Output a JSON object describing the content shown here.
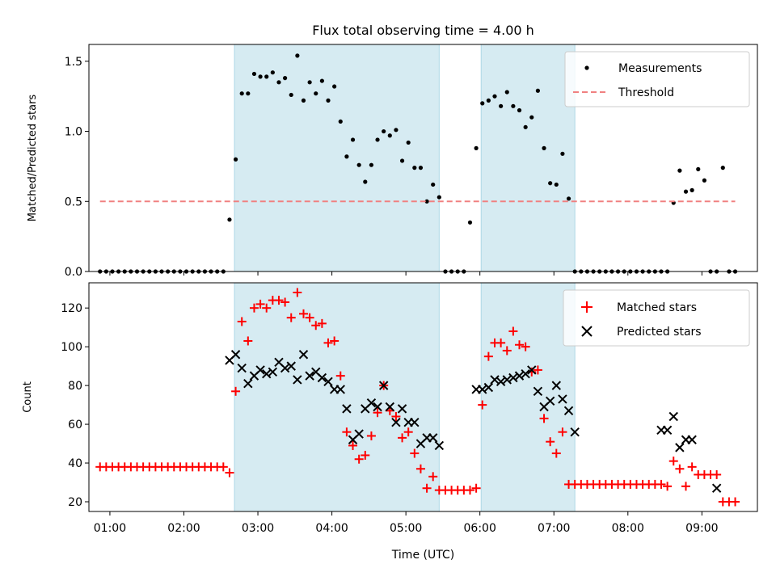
{
  "chart_data": [
    {
      "type": "scatter",
      "title": "Flux total observing time = 4.00 h",
      "xlabel": "",
      "ylabel": "Matched/Predicted stars",
      "xlim": [
        "00:43",
        "09:45"
      ],
      "ylim": [
        0.0,
        1.62
      ],
      "yticks": [
        0.0,
        0.5,
        1.0,
        1.5
      ],
      "ytick_labels": [
        "0.0",
        "0.5",
        "1.0",
        "1.5"
      ],
      "legend_position": "top-right",
      "shaded_intervals": [
        [
          "02:41",
          "05:27"
        ],
        [
          "06:01",
          "07:17"
        ]
      ],
      "series": [
        {
          "name": "Measurements",
          "kind": "dots",
          "color": "#000000",
          "x": [
            "00:52",
            "00:57",
            "01:02",
            "01:07",
            "01:12",
            "01:17",
            "01:22",
            "01:27",
            "01:32",
            "01:37",
            "01:42",
            "01:47",
            "01:52",
            "01:57",
            "02:02",
            "02:07",
            "02:12",
            "02:17",
            "02:22",
            "02:27",
            "02:32",
            "02:37",
            "02:42",
            "02:47",
            "02:52",
            "02:57",
            "03:02",
            "03:07",
            "03:12",
            "03:17",
            "03:22",
            "03:27",
            "03:32",
            "03:37",
            "03:42",
            "03:47",
            "03:52",
            "03:57",
            "04:02",
            "04:07",
            "04:12",
            "04:17",
            "04:22",
            "04:27",
            "04:32",
            "04:37",
            "04:42",
            "04:47",
            "04:52",
            "04:57",
            "05:02",
            "05:07",
            "05:12",
            "05:17",
            "05:22",
            "05:27",
            "05:32",
            "05:37",
            "05:42",
            "05:47",
            "05:52",
            "05:57",
            "06:02",
            "06:07",
            "06:12",
            "06:17",
            "06:22",
            "06:27",
            "06:32",
            "06:37",
            "06:42",
            "06:47",
            "06:52",
            "06:57",
            "07:02",
            "07:07",
            "07:12",
            "07:17",
            "07:22",
            "07:27",
            "07:32",
            "07:37",
            "07:42",
            "07:47",
            "07:52",
            "07:57",
            "08:02",
            "08:07",
            "08:12",
            "08:17",
            "08:22",
            "08:27",
            "08:32",
            "08:37",
            "08:42",
            "08:47",
            "08:52",
            "08:57",
            "09:02",
            "09:07",
            "09:12",
            "09:17",
            "09:22",
            "09:27"
          ],
          "y": [
            0,
            0,
            0,
            0,
            0,
            0,
            0,
            0,
            0,
            0,
            0,
            0,
            0,
            0,
            0,
            0,
            0,
            0,
            0,
            0,
            0,
            0.37,
            0.8,
            1.27,
            1.27,
            1.41,
            1.39,
            1.39,
            1.42,
            1.35,
            1.38,
            1.26,
            1.54,
            1.22,
            1.35,
            1.27,
            1.36,
            1.22,
            1.32,
            1.07,
            0.82,
            0.94,
            0.76,
            0.64,
            0.76,
            0.94,
            1.0,
            0.97,
            1.01,
            0.79,
            0.92,
            0.74,
            0.74,
            0.5,
            0.62,
            0.53,
            0,
            0,
            0,
            0,
            0.35,
            0.88,
            1.2,
            1.22,
            1.25,
            1.18,
            1.28,
            1.18,
            1.15,
            1.03,
            1.1,
            1.29,
            0.88,
            0.63,
            0.62,
            0.84,
            0.52,
            0,
            0,
            0,
            0,
            0,
            0,
            0,
            0,
            0,
            0,
            0,
            0,
            0,
            0,
            0,
            0,
            0.49,
            0.72,
            0.57,
            0.58,
            0.73,
            0.65,
            0,
            0,
            0.74,
            0,
            0
          ]
        },
        {
          "name": "Threshold",
          "kind": "dashed-line",
          "color": "#f08080",
          "x": [
            "00:52",
            "09:27"
          ],
          "y": [
            0.5,
            0.5
          ]
        }
      ]
    },
    {
      "type": "scatter",
      "title": "",
      "xlabel": "Time (UTC)",
      "ylabel": "Count",
      "xlim": [
        "00:43",
        "09:45"
      ],
      "ylim": [
        15,
        133
      ],
      "yticks": [
        20,
        40,
        60,
        80,
        100,
        120
      ],
      "ytick_labels": [
        "20",
        "40",
        "60",
        "80",
        "100",
        "120"
      ],
      "xticks": [
        "01:00",
        "02:00",
        "03:00",
        "04:00",
        "05:00",
        "06:00",
        "07:00",
        "08:00",
        "09:00"
      ],
      "xtick_labels": [
        "01:00",
        "02:00",
        "03:00",
        "04:00",
        "05:00",
        "06:00",
        "07:00",
        "08:00",
        "09:00"
      ],
      "legend_position": "top-right",
      "shaded_intervals": [
        [
          "02:41",
          "05:27"
        ],
        [
          "06:01",
          "07:17"
        ]
      ],
      "series": [
        {
          "name": "Matched stars",
          "marker": "plus",
          "color": "#ff0000",
          "x": [
            "00:52",
            "00:57",
            "01:02",
            "01:07",
            "01:12",
            "01:17",
            "01:22",
            "01:27",
            "01:32",
            "01:37",
            "01:42",
            "01:47",
            "01:52",
            "01:57",
            "02:02",
            "02:07",
            "02:12",
            "02:17",
            "02:22",
            "02:27",
            "02:32",
            "02:37",
            "02:42",
            "02:47",
            "02:52",
            "02:57",
            "03:02",
            "03:07",
            "03:12",
            "03:17",
            "03:22",
            "03:27",
            "03:32",
            "03:37",
            "03:42",
            "03:47",
            "03:52",
            "03:57",
            "04:02",
            "04:07",
            "04:12",
            "04:17",
            "04:22",
            "04:27",
            "04:32",
            "04:37",
            "04:42",
            "04:47",
            "04:52",
            "04:57",
            "05:02",
            "05:07",
            "05:12",
            "05:17",
            "05:22",
            "05:27",
            "05:32",
            "05:37",
            "05:42",
            "05:47",
            "05:52",
            "05:57",
            "06:02",
            "06:07",
            "06:12",
            "06:17",
            "06:22",
            "06:27",
            "06:32",
            "06:37",
            "06:42",
            "06:47",
            "06:52",
            "06:57",
            "07:02",
            "07:07",
            "07:12",
            "07:17",
            "07:22",
            "07:27",
            "07:32",
            "07:37",
            "07:42",
            "07:47",
            "07:52",
            "07:57",
            "08:02",
            "08:07",
            "08:12",
            "08:17",
            "08:22",
            "08:27",
            "08:32",
            "08:37",
            "08:42",
            "08:47",
            "08:52",
            "08:57",
            "09:02",
            "09:07",
            "09:12",
            "09:17",
            "09:22",
            "09:27"
          ],
          "y": [
            38,
            38,
            38,
            38,
            38,
            38,
            38,
            38,
            38,
            38,
            38,
            38,
            38,
            38,
            38,
            38,
            38,
            38,
            38,
            38,
            38,
            35,
            77,
            113,
            103,
            120,
            122,
            120,
            124,
            124,
            123,
            115,
            128,
            117,
            115,
            111,
            112,
            102,
            103,
            85,
            56,
            49,
            42,
            44,
            54,
            66,
            80,
            67,
            64,
            53,
            56,
            45,
            37,
            27,
            33,
            26,
            26,
            26,
            26,
            26,
            26,
            27,
            70,
            95,
            102,
            102,
            98,
            108,
            101,
            100,
            87,
            88,
            63,
            51,
            45,
            56,
            29,
            29,
            29,
            29,
            29,
            29,
            29,
            29,
            29,
            29,
            29,
            29,
            29,
            29,
            29,
            29,
            28,
            41,
            37,
            28,
            38,
            34,
            34,
            34,
            34,
            20,
            20,
            20
          ]
        },
        {
          "name": "Predicted stars",
          "marker": "x",
          "color": "#000000",
          "x": [
            "02:37",
            "02:42",
            "02:47",
            "02:52",
            "02:57",
            "03:02",
            "03:07",
            "03:12",
            "03:17",
            "03:22",
            "03:27",
            "03:32",
            "03:37",
            "03:42",
            "03:47",
            "03:52",
            "03:57",
            "04:02",
            "04:07",
            "04:12",
            "04:17",
            "04:22",
            "04:27",
            "04:32",
            "04:37",
            "04:42",
            "04:47",
            "04:52",
            "04:57",
            "05:02",
            "05:07",
            "05:12",
            "05:17",
            "05:22",
            "05:27",
            "05:57",
            "06:02",
            "06:07",
            "06:12",
            "06:17",
            "06:22",
            "06:27",
            "06:32",
            "06:37",
            "06:42",
            "06:47",
            "06:52",
            "06:57",
            "07:02",
            "07:07",
            "07:12",
            "07:17",
            "08:27",
            "08:32",
            "08:37",
            "08:42",
            "08:47",
            "08:52",
            "09:12"
          ],
          "y": [
            93,
            96,
            89,
            81,
            85,
            88,
            86,
            87,
            92,
            89,
            90,
            83,
            96,
            85,
            87,
            84,
            82,
            78,
            78,
            68,
            52,
            55,
            68,
            71,
            69,
            80,
            69,
            61,
            68,
            61,
            61,
            50,
            53,
            53,
            49,
            78,
            78,
            79,
            83,
            82,
            83,
            84,
            85,
            86,
            88,
            77,
            69,
            72,
            80,
            73,
            67,
            56,
            57,
            57,
            64,
            48,
            52,
            52,
            27
          ]
        }
      ]
    }
  ]
}
